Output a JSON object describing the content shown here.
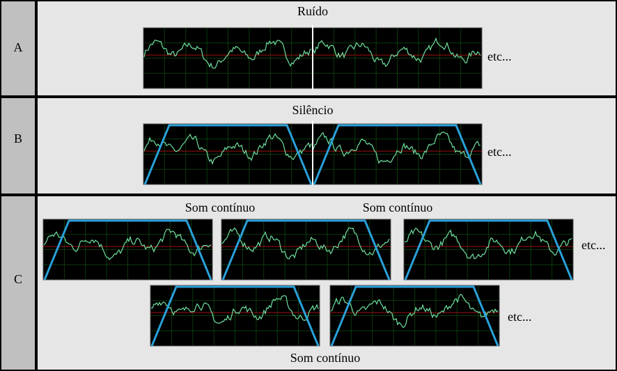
{
  "rows": [
    {
      "label": "A",
      "title": "Ruído",
      "etc": "etc..."
    },
    {
      "label": "B",
      "title": "Silêncio",
      "etc": "etc..."
    },
    {
      "label": "C",
      "titles": [
        "Som contínuo",
        "Som contínuo",
        "Som contínuo"
      ],
      "etc": [
        "etc...",
        "etc..."
      ]
    }
  ]
}
